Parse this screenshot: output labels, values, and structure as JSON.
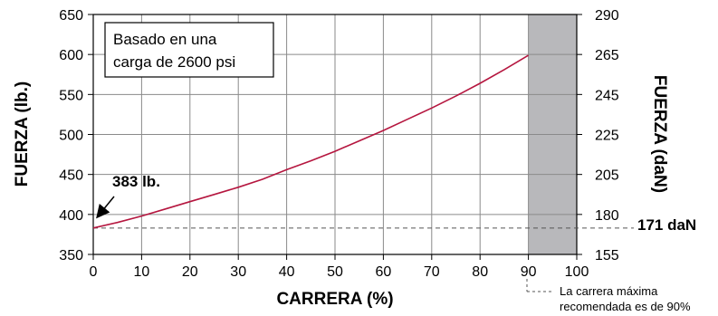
{
  "chart_data": {
    "type": "line",
    "xlabel": "CARRERA (%)",
    "ylabel_left": "FUERZA (lb.)",
    "ylabel_right": "FUERZA (daN)",
    "xlim": [
      0,
      100
    ],
    "ylim": [
      350,
      650
    ],
    "x_ticks": [
      "0",
      "10",
      "20",
      "30",
      "40",
      "50",
      "60",
      "70",
      "80",
      "90",
      "100"
    ],
    "y_ticks_left": [
      "350",
      "400",
      "450",
      "500",
      "550",
      "600",
      "650"
    ],
    "y_ticks_right": [
      "155",
      "180",
      "205",
      "225",
      "245",
      "265",
      "290"
    ],
    "grid": true,
    "series": [
      {
        "x": [
          0,
          5,
          10,
          15,
          20,
          25,
          30,
          35,
          40,
          45,
          50,
          55,
          60,
          65,
          70,
          75,
          80,
          85,
          90
        ],
        "y": [
          383,
          390,
          398,
          407,
          416,
          425,
          434,
          444,
          456,
          467,
          479,
          492,
          505,
          519,
          533,
          548,
          564,
          581,
          599
        ]
      }
    ],
    "shaded_region": {
      "x_from": 90,
      "x_to": 100
    },
    "reference_line": {
      "y": 383,
      "label": "171 daN"
    },
    "annotation_point": {
      "x": 0,
      "y": 383,
      "label": "383 lb."
    },
    "info_box": [
      "Basado en una",
      "carga de 2600 psi"
    ],
    "note": [
      "La carrera máxima",
      "recomendada es de 90%"
    ],
    "colors": {
      "line": "#b5163f",
      "shade": "#b8b8bb",
      "grid": "#8a8a8a"
    }
  }
}
